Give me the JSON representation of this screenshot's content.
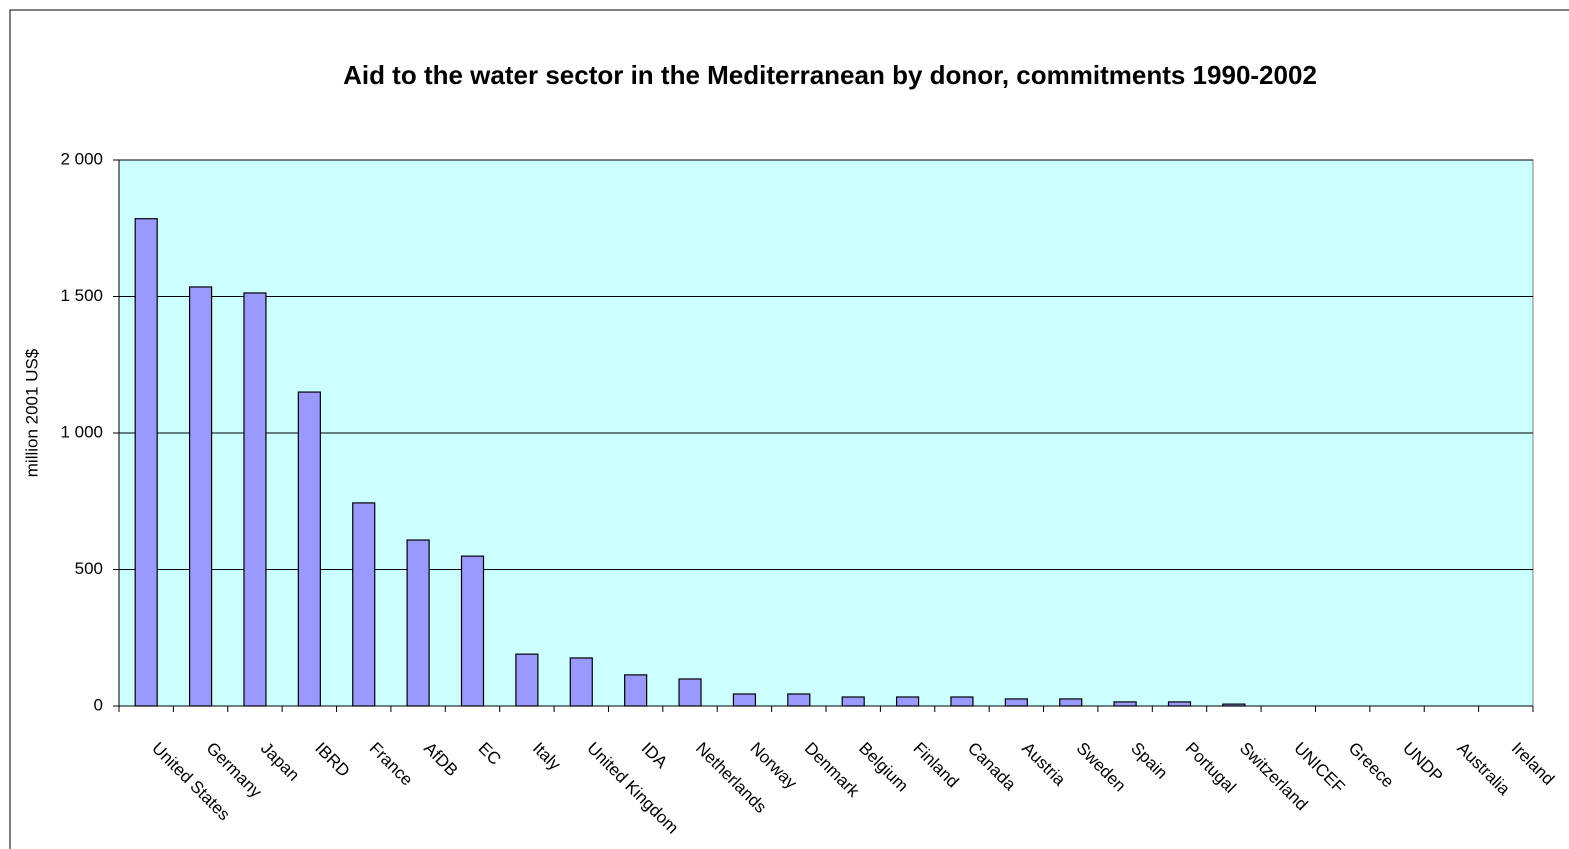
{
  "chart_data": {
    "type": "bar",
    "title": "Aid to the water sector in the Mediterranean by donor, commitments 1990-2002",
    "y_label": "million 2001 US$",
    "categories": [
      "United States",
      "Germany",
      "Japan",
      "IBRD",
      "France",
      "AfDB",
      "EC",
      "Italy",
      "United Kingdom",
      "IDA",
      "Netherlands",
      "Norway",
      "Denmark",
      "Belgium",
      "Finland",
      "Canada",
      "Austria",
      "Sweden",
      "Spain",
      "Portugal",
      "Switzerland",
      "UNICEF",
      "Greece",
      "UNDP",
      "Australia",
      "Ireland"
    ],
    "values": [
      1785,
      1535,
      1513,
      1150,
      744,
      608,
      549,
      190,
      176,
      114,
      99,
      44,
      44,
      33,
      33,
      33,
      26,
      26,
      15,
      15,
      7,
      0,
      0,
      0,
      0,
      0
    ],
    "color": "#9999ff",
    "background": "#ccffff",
    "ylim": [
      0,
      2000
    ],
    "yticks": [
      0,
      500,
      {
        "value": 1000,
        "label": "1 000"
      },
      {
        "value": 1500,
        "label": "1 500"
      },
      {
        "value": 2000,
        "label": "2 000"
      }
    ],
    "grid": true
  }
}
